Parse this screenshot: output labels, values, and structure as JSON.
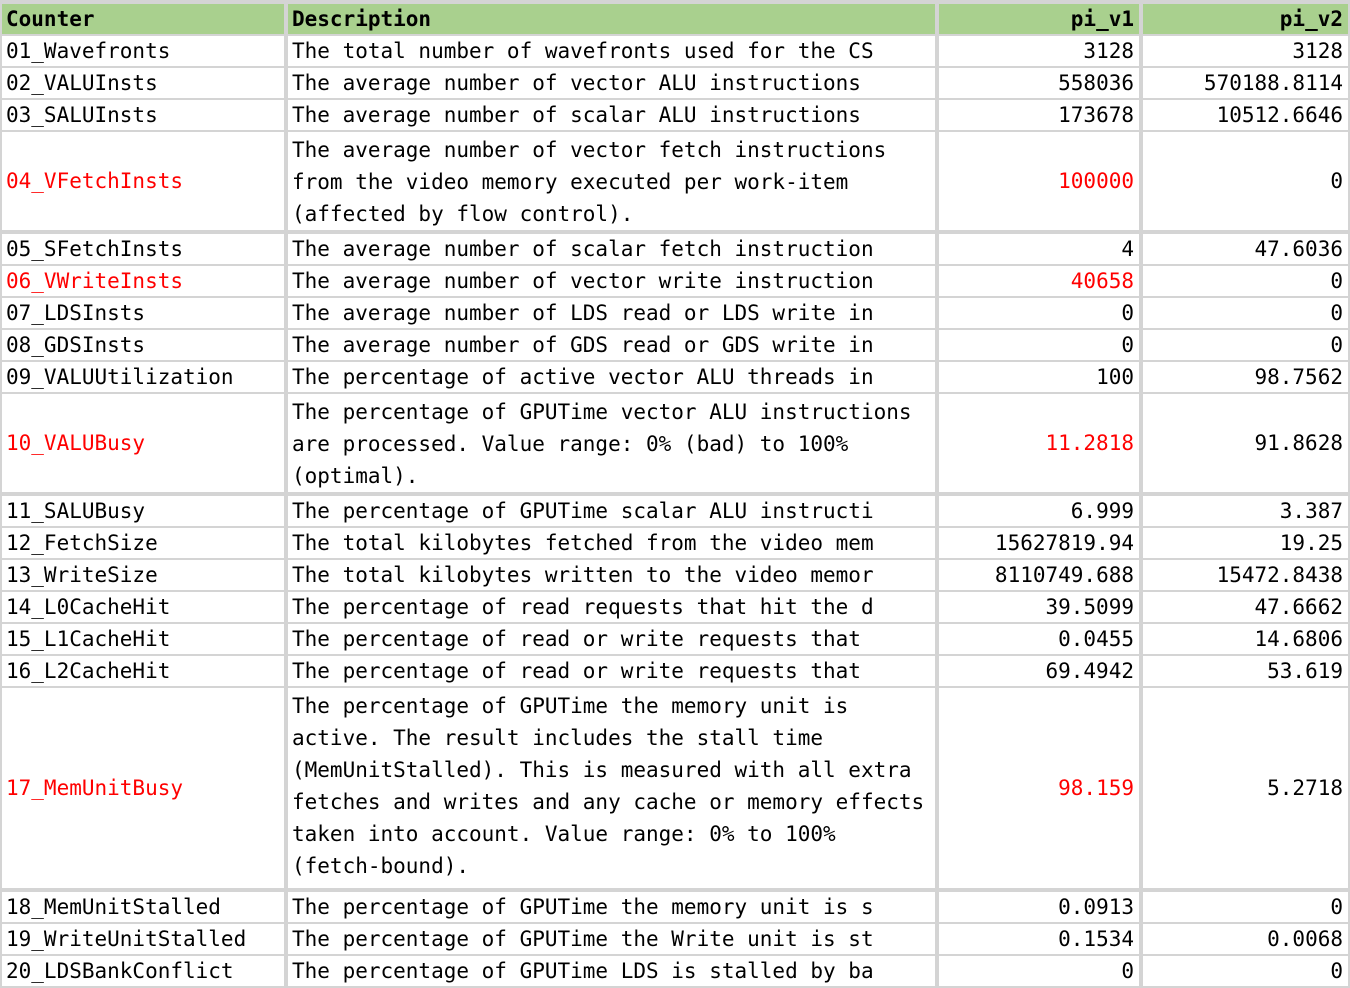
{
  "columns": {
    "counter": "Counter",
    "description": "Description",
    "v1": "pi_v1",
    "v2": "pi_v2"
  },
  "rows": [
    {
      "counter": "01_Wavefronts",
      "description": "The total number of wavefronts used for the CS",
      "v1": "3128",
      "v2": "3128",
      "highlight": false
    },
    {
      "counter": "02_VALUInsts",
      "description": "The average number of vector ALU instructions",
      "v1": "558036",
      "v2": "570188.8114",
      "highlight": false
    },
    {
      "counter": "03_SALUInsts",
      "description": "The average number of scalar ALU instructions",
      "v1": "173678",
      "v2": "10512.6646",
      "highlight": false
    },
    {
      "counter": "04_VFetchInsts",
      "description": "The average number of vector fetch instructions from the video memory executed per work-item (affected by flow control).",
      "v1": "100000",
      "v2": "0",
      "highlight": true
    },
    {
      "counter": "05_SFetchInsts",
      "description": "The average number of scalar fetch instruction",
      "v1": "4",
      "v2": "47.6036",
      "highlight": false
    },
    {
      "counter": "06_VWriteInsts",
      "description": "The average number of vector write instruction",
      "v1": "40658",
      "v2": "0",
      "highlight": true
    },
    {
      "counter": "07_LDSInsts",
      "description": "The average number of LDS read or LDS write in",
      "v1": "0",
      "v2": "0",
      "highlight": false
    },
    {
      "counter": "08_GDSInsts",
      "description": "The average number of GDS read or GDS write in",
      "v1": "0",
      "v2": "0",
      "highlight": false
    },
    {
      "counter": "09_VALUUtilization",
      "description": "The percentage of active vector ALU threads in",
      "v1": "100",
      "v2": "98.7562",
      "highlight": false
    },
    {
      "counter": "10_VALUBusy",
      "description": "The percentage of GPUTime vector ALU instructions are processed. Value range: 0% (bad) to 100% (optimal).",
      "v1": "11.2818",
      "v2": "91.8628",
      "highlight": true
    },
    {
      "counter": "11_SALUBusy",
      "description": "The percentage of GPUTime scalar ALU instructi",
      "v1": "6.999",
      "v2": "3.387",
      "highlight": false
    },
    {
      "counter": "12_FetchSize",
      "description": "The total kilobytes fetched from the video mem",
      "v1": "15627819.94",
      "v2": "19.25",
      "highlight": false
    },
    {
      "counter": "13_WriteSize",
      "description": "The total kilobytes written to the video memor",
      "v1": "8110749.688",
      "v2": "15472.8438",
      "highlight": false
    },
    {
      "counter": "14_L0CacheHit",
      "description": "The percentage of read requests that hit the d",
      "v1": "39.5099",
      "v2": "47.6662",
      "highlight": false
    },
    {
      "counter": "15_L1CacheHit",
      "description": "The percentage of read or write requests that",
      "v1": "0.0455",
      "v2": "14.6806",
      "highlight": false
    },
    {
      "counter": "16_L2CacheHit",
      "description": "The percentage of read or write requests that",
      "v1": "69.4942",
      "v2": "53.619",
      "highlight": false
    },
    {
      "counter": "17_MemUnitBusy",
      "description": "The percentage of GPUTime the memory unit is active. The result includes the stall time (MemUnitStalled). This is measured with all extra fetches and writes and any cache or memory effects taken into account. Value range: 0% to 100% (fetch-bound).",
      "v1": "98.159",
      "v2": "5.2718",
      "highlight": true
    },
    {
      "counter": "18_MemUnitStalled",
      "description": "The percentage of GPUTime the memory unit is s",
      "v1": "0.0913",
      "v2": "0",
      "highlight": false
    },
    {
      "counter": "19_WriteUnitStalled",
      "description": "The percentage of GPUTime the Write unit is st",
      "v1": "0.1534",
      "v2": "0.0068",
      "highlight": false
    },
    {
      "counter": "20_LDSBankConflict",
      "description": "The percentage of GPUTime LDS is stalled by ba",
      "v1": "0",
      "v2": "0",
      "highlight": false
    }
  ]
}
